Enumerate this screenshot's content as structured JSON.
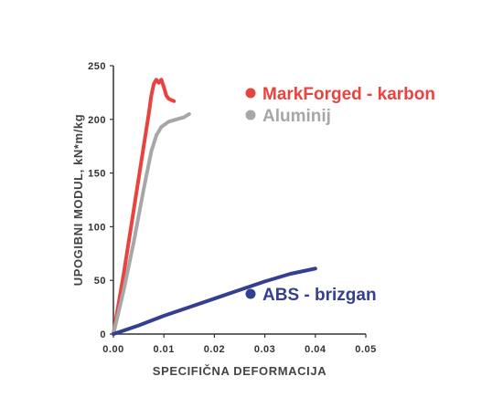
{
  "chart_data": {
    "type": "line",
    "title": "",
    "xlabel": "SPECIFIČNA DEFORMACIJA",
    "ylabel": "UPOGIBNI MODUL, kN*m/kg",
    "xlim": [
      0,
      0.05
    ],
    "ylim": [
      0,
      250
    ],
    "x_ticks": [
      "0.00",
      "0.01",
      "0.02",
      "0.03",
      "0.04",
      "0.05"
    ],
    "y_ticks": [
      "0",
      "50",
      "100",
      "150",
      "200",
      "250"
    ],
    "grid": false,
    "series": [
      {
        "name": "MarkForged - karbon",
        "color": "#e8433e",
        "x": [
          0,
          0.002,
          0.004,
          0.006,
          0.007,
          0.0075,
          0.008,
          0.0085,
          0.009,
          0.0095,
          0.01,
          0.0105,
          0.011,
          0.012
        ],
        "y": [
          0,
          55,
          115,
          175,
          205,
          222,
          233,
          237,
          234,
          237,
          230,
          222,
          219,
          217
        ]
      },
      {
        "name": "Aluminij",
        "color": "#a7a7a7",
        "x": [
          0,
          0.002,
          0.004,
          0.006,
          0.0075,
          0.0085,
          0.0095,
          0.011,
          0.0125,
          0.014,
          0.015
        ],
        "y": [
          0,
          40,
          85,
          135,
          170,
          185,
          193,
          198,
          200,
          202,
          205
        ]
      },
      {
        "name": "ABS - brizgan",
        "color": "#343f8f",
        "x": [
          0,
          0.005,
          0.01,
          0.015,
          0.02,
          0.025,
          0.03,
          0.035,
          0.04
        ],
        "y": [
          0,
          8,
          17,
          25,
          33,
          41,
          49,
          56,
          61
        ]
      }
    ],
    "legend": [
      {
        "label": "MarkForged - karbon",
        "color": "#e8433e"
      },
      {
        "label": "Aluminij",
        "color": "#a7a7a7"
      },
      {
        "label": "ABS - brizgan",
        "color": "#343f8f"
      }
    ]
  }
}
